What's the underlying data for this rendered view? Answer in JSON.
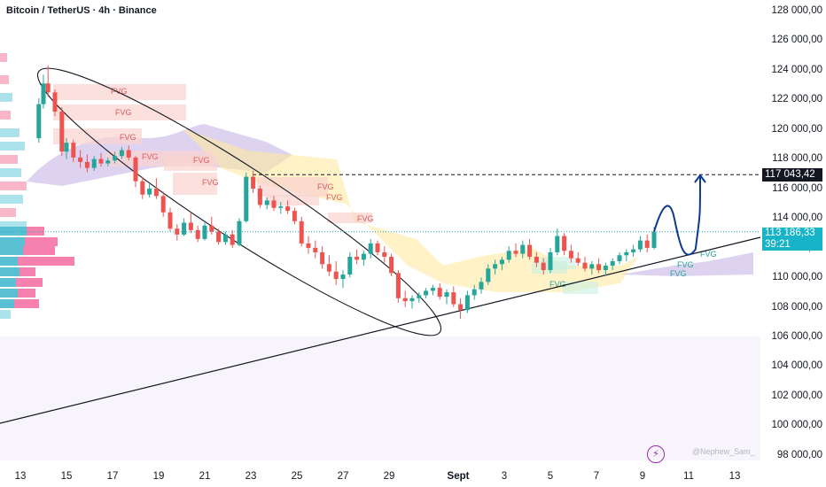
{
  "header": {
    "title": "Bitcoin / TetherUS · 4h · Binance"
  },
  "price_axis": {
    "ticks": [
      "128 000,00",
      "126 000,00",
      "124 000,00",
      "122 000,00",
      "120 000,00",
      "118 000,00",
      "116 000,00",
      "114 000,00",
      "112 000,00",
      "110 000,00",
      "108 000,00",
      "106 000,00",
      "104 000,00",
      "102 000,00",
      "100 000,00",
      "98 000,00"
    ],
    "current_price": "113 186,33",
    "countdown": "39:21",
    "marked_level": "117 043,42"
  },
  "time_axis": {
    "ticks": [
      "13",
      "15",
      "17",
      "19",
      "21",
      "23",
      "25",
      "27",
      "29",
      "Sept",
      "3",
      "5",
      "7",
      "9",
      "11",
      "13"
    ]
  },
  "watermark": "@Nephew_Sam_",
  "logo_icon": "lightning-icon",
  "colors": {
    "up": "#26a69a",
    "down": "#ef5350",
    "ichimoku_down_cloud": "#c7b6e8",
    "ichimoku_up_cloud": "#fdeaa0",
    "fvg_zone": "#f9d3cf",
    "price_line": "#17b4c9",
    "arrow": "#0d3a91"
  },
  "chart_data": {
    "type": "candlestick",
    "timeframe": "4h",
    "ylim": [
      97000,
      129000
    ],
    "xlim": [
      12.3,
      44.0
    ],
    "x_unit": "day of August (32 = Sept 1)",
    "annotations": {
      "fvg_labels": [
        "FVG",
        "FVG",
        "FVG",
        "FVG",
        "FVG",
        "FVG",
        "FVG",
        "FVG",
        "FVG",
        "FVG",
        "FVG",
        "FVG",
        "FVG"
      ],
      "resistance_level": 117043.42,
      "current_price": 113186.33,
      "projection": "dip to ~111 500 then rally to ~117 000"
    },
    "candles": [
      [
        13.8,
        119500,
        122200,
        119200,
        121800
      ],
      [
        14.0,
        121800,
        123800,
        121500,
        123200
      ],
      [
        14.2,
        123200,
        124400,
        122300,
        122600
      ],
      [
        14.5,
        122600,
        122800,
        121000,
        121300
      ],
      [
        14.8,
        121300,
        121600,
        118300,
        118600
      ],
      [
        15.0,
        118600,
        119500,
        118100,
        119200
      ],
      [
        15.3,
        119200,
        119400,
        117900,
        118200
      ],
      [
        15.6,
        118200,
        118700,
        117500,
        117900
      ],
      [
        15.9,
        117900,
        118400,
        117200,
        117500
      ],
      [
        16.2,
        117500,
        118300,
        117300,
        118100
      ],
      [
        16.5,
        118100,
        118500,
        117600,
        117800
      ],
      [
        16.8,
        117800,
        118200,
        117600,
        118000
      ],
      [
        17.1,
        118000,
        118600,
        117800,
        118300
      ],
      [
        17.4,
        118300,
        118900,
        118100,
        118700
      ],
      [
        17.7,
        118700,
        119000,
        118000,
        118200
      ],
      [
        18.0,
        118200,
        118300,
        116200,
        116600
      ],
      [
        18.3,
        116600,
        116900,
        115400,
        115700
      ],
      [
        18.6,
        115700,
        116400,
        115500,
        116100
      ],
      [
        18.9,
        116100,
        116800,
        115400,
        115600
      ],
      [
        19.2,
        115600,
        115900,
        114200,
        114500
      ],
      [
        19.5,
        114500,
        114800,
        113200,
        113400
      ],
      [
        19.8,
        113400,
        113700,
        112600,
        113000
      ],
      [
        20.1,
        113000,
        114100,
        112900,
        113800
      ],
      [
        20.4,
        113800,
        114500,
        113100,
        113300
      ],
      [
        20.7,
        113300,
        113600,
        112500,
        112700
      ],
      [
        21.0,
        112700,
        113800,
        112600,
        113600
      ],
      [
        21.3,
        113600,
        114200,
        113000,
        113200
      ],
      [
        21.6,
        113200,
        113400,
        112300,
        112500
      ],
      [
        21.9,
        112500,
        113200,
        112300,
        113000
      ],
      [
        22.2,
        113000,
        113300,
        112100,
        112300
      ],
      [
        22.5,
        112300,
        114100,
        112200,
        113900
      ],
      [
        22.8,
        113900,
        117200,
        113800,
        116900
      ],
      [
        23.1,
        116900,
        117300,
        115800,
        116100
      ],
      [
        23.4,
        116100,
        116300,
        114800,
        115000
      ],
      [
        23.7,
        115000,
        115500,
        114700,
        115300
      ],
      [
        24.0,
        115300,
        115600,
        114600,
        114800
      ],
      [
        24.3,
        114800,
        115200,
        114400,
        114900
      ],
      [
        24.6,
        114900,
        115300,
        114400,
        114600
      ],
      [
        24.9,
        114600,
        114800,
        113700,
        113900
      ],
      [
        25.2,
        113900,
        114200,
        112200,
        112400
      ],
      [
        25.5,
        112400,
        112900,
        111700,
        112100
      ],
      [
        25.8,
        112100,
        112600,
        111400,
        111800
      ],
      [
        26.1,
        111800,
        112200,
        110700,
        111000
      ],
      [
        26.4,
        111000,
        111600,
        110200,
        110500
      ],
      [
        26.7,
        110500,
        111200,
        109600,
        110000
      ],
      [
        27.0,
        110000,
        110600,
        109400,
        110300
      ],
      [
        27.3,
        110300,
        111800,
        110100,
        111500
      ],
      [
        27.6,
        111500,
        112000,
        111000,
        111300
      ],
      [
        27.9,
        111300,
        111900,
        110900,
        111700
      ],
      [
        28.2,
        111700,
        112700,
        111400,
        112400
      ],
      [
        28.5,
        112400,
        112600,
        111600,
        111800
      ],
      [
        28.8,
        111800,
        112200,
        111100,
        111500
      ],
      [
        29.1,
        111500,
        111700,
        110200,
        110400
      ],
      [
        29.4,
        110400,
        110600,
        108400,
        108700
      ],
      [
        29.7,
        108700,
        109200,
        108100,
        108500
      ],
      [
        30.0,
        108500,
        108900,
        108000,
        108700
      ],
      [
        30.3,
        108700,
        109100,
        108400,
        108900
      ],
      [
        30.6,
        108900,
        109400,
        108700,
        109200
      ],
      [
        30.9,
        109200,
        109600,
        108900,
        109400
      ],
      [
        31.2,
        109400,
        109700,
        108600,
        108800
      ],
      [
        31.5,
        108800,
        109300,
        108300,
        109100
      ],
      [
        31.8,
        109100,
        109500,
        108100,
        108300
      ],
      [
        32.1,
        108300,
        108700,
        107300,
        107900
      ],
      [
        32.4,
        107900,
        109200,
        107700,
        108900
      ],
      [
        32.7,
        108900,
        109600,
        108600,
        109300
      ],
      [
        33.0,
        109300,
        110100,
        109000,
        109800
      ],
      [
        33.3,
        109800,
        111000,
        109600,
        110700
      ],
      [
        33.6,
        110700,
        111300,
        110300,
        111000
      ],
      [
        33.9,
        111000,
        111500,
        110600,
        111300
      ],
      [
        34.2,
        111300,
        112200,
        111100,
        111900
      ],
      [
        34.5,
        111900,
        112400,
        111500,
        111700
      ],
      [
        34.8,
        111700,
        112600,
        111400,
        112300
      ],
      [
        35.1,
        112300,
        112700,
        111300,
        111500
      ],
      [
        35.4,
        111500,
        111800,
        110800,
        111100
      ],
      [
        35.7,
        111100,
        111400,
        110300,
        110600
      ],
      [
        36.0,
        110600,
        112100,
        110400,
        111800
      ],
      [
        36.3,
        111800,
        113400,
        111600,
        112900
      ],
      [
        36.6,
        112900,
        113100,
        111600,
        111900
      ],
      [
        36.9,
        111900,
        112300,
        111100,
        111400
      ],
      [
        37.2,
        111400,
        111800,
        110900,
        111100
      ],
      [
        37.5,
        111100,
        111500,
        110500,
        110700
      ],
      [
        37.8,
        110700,
        111200,
        110300,
        111000
      ],
      [
        38.1,
        111000,
        111400,
        110400,
        110600
      ],
      [
        38.4,
        110600,
        111100,
        110200,
        110900
      ],
      [
        38.7,
        110900,
        111400,
        110600,
        111200
      ],
      [
        39.0,
        111200,
        111800,
        111000,
        111600
      ],
      [
        39.3,
        111600,
        112000,
        111200,
        111800
      ],
      [
        39.6,
        111800,
        112300,
        111500,
        112000
      ],
      [
        39.9,
        112000,
        112900,
        111800,
        112600
      ],
      [
        40.2,
        112600,
        113000,
        111800,
        112100
      ],
      [
        40.5,
        112100,
        113500,
        112000,
        113186
      ]
    ],
    "projection_path": [
      [
        40.5,
        113186
      ],
      [
        41.2,
        114000
      ],
      [
        41.8,
        111500
      ],
      [
        42.3,
        112000
      ],
      [
        42.5,
        114500
      ],
      [
        42.5,
        117000
      ]
    ]
  }
}
